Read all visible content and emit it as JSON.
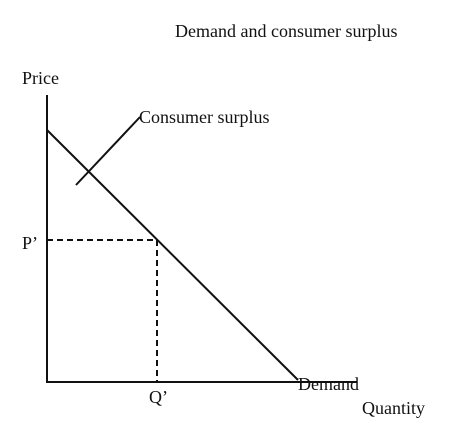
{
  "title": "Demand and consumer surplus",
  "axes": {
    "y_label": "Price",
    "x_label": "Quantity"
  },
  "labels": {
    "curve": "Demand",
    "area": "Consumer surplus",
    "price": "P’",
    "quantity": "Q’"
  }
}
